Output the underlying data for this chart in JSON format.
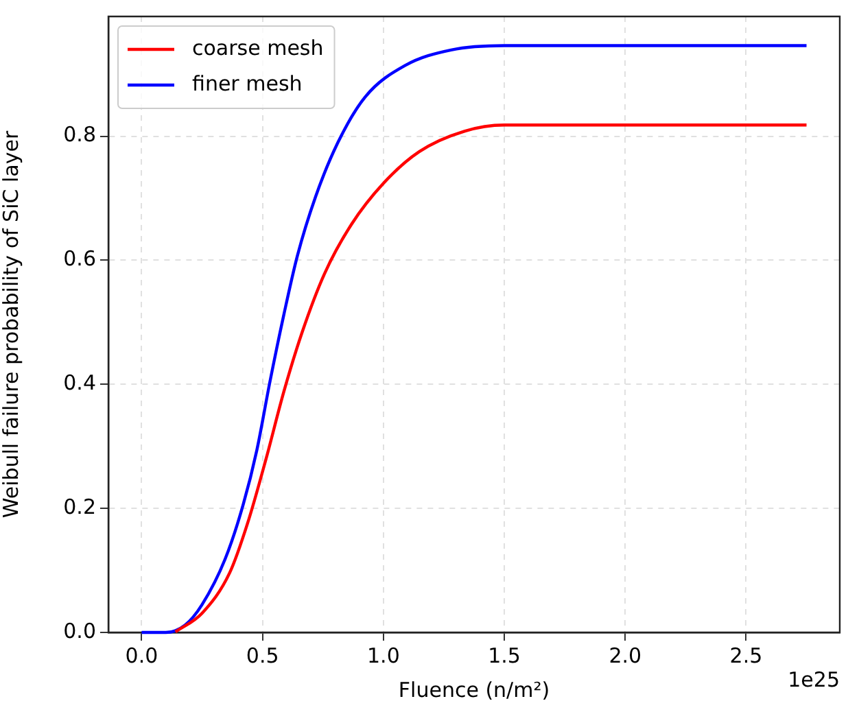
{
  "chart_data": {
    "type": "line",
    "xlabel": "Fluence (n/m²)",
    "ylabel": "Weibull failure probability of SiC layer",
    "annotations": [
      "1e25"
    ],
    "xlim": [
      -0.1375,
      2.8875
    ],
    "ylim": [
      0,
      0.993
    ],
    "xticks": [
      {
        "value": 0,
        "label": "0.0"
      },
      {
        "value": 0.5,
        "label": "0.5"
      },
      {
        "value": 1,
        "label": "1.0"
      },
      {
        "value": 1.5,
        "label": "1.5"
      },
      {
        "value": 2,
        "label": "2.0"
      },
      {
        "value": 2.5,
        "label": "2.5"
      }
    ],
    "yticks": [
      {
        "value": 0,
        "label": "0.0"
      },
      {
        "value": 0.2,
        "label": "0.2"
      },
      {
        "value": 0.4,
        "label": "0.4"
      },
      {
        "value": 0.6,
        "label": "0.6"
      },
      {
        "value": 0.8,
        "label": "0.8"
      }
    ],
    "grid": true,
    "legend": "top left",
    "marker": "none",
    "line_style": "solid",
    "series": [
      {
        "name": "coarse mesh",
        "color": "#ff0000",
        "x": [
          0.14,
          0.25,
          0.364,
          0.439,
          0.514,
          0.588,
          0.663,
          0.756,
          0.868,
          1.0,
          1.148,
          1.335,
          1.5,
          2.0,
          2.75
        ],
        "values": [
          0.001,
          0.031,
          0.096,
          0.177,
          0.279,
          0.388,
          0.483,
          0.578,
          0.658,
          0.724,
          0.775,
          0.808,
          0.818,
          0.818,
          0.818
        ]
      },
      {
        "name": "finer mesh",
        "color": "#0000ff",
        "x": [
          0,
          0.1,
          0.18,
          0.25,
          0.345,
          0.42,
          0.476,
          0.53,
          0.588,
          0.644,
          0.719,
          0.812,
          0.924,
          1.09,
          1.28,
          1.5,
          2.0,
          2.75
        ],
        "values": [
          0,
          0,
          0.012,
          0.045,
          0.118,
          0.206,
          0.293,
          0.403,
          0.512,
          0.607,
          0.702,
          0.79,
          0.863,
          0.914,
          0.939,
          0.946,
          0.946,
          0.946
        ]
      }
    ]
  }
}
